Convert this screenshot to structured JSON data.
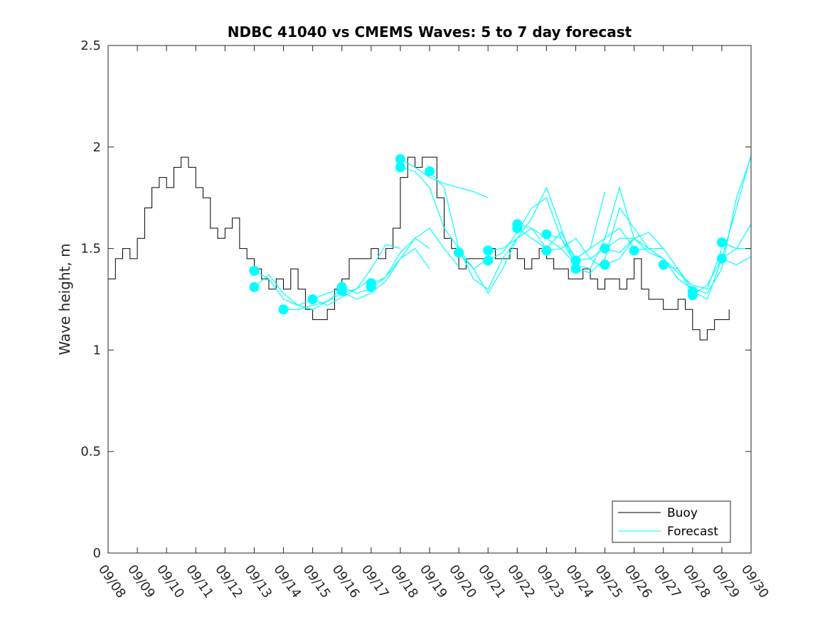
{
  "chart_data": {
    "type": "line",
    "title": "NDBC 41040 vs CMEMS Waves: 5 to 7 day forecast",
    "xlabel": "",
    "ylabel": "Wave height, m",
    "xlim": [
      0,
      22
    ],
    "ylim": [
      0,
      2.5
    ],
    "grid": false,
    "legend_position": "bottom-right",
    "x_tick_labels": [
      "09/08",
      "09/09",
      "09/10",
      "09/11",
      "09/12",
      "09/13",
      "09/14",
      "09/15",
      "09/16",
      "09/17",
      "09/18",
      "09/19",
      "09/20",
      "09/21",
      "09/22",
      "09/23",
      "09/24",
      "09/25",
      "09/26",
      "09/27",
      "09/28",
      "09/29",
      "09/30"
    ],
    "y_ticks": [
      0,
      0.5,
      1,
      1.5,
      2,
      2.5
    ],
    "y_tick_labels": [
      "0",
      "0.5",
      "1",
      "1.5",
      "2",
      "2.5"
    ],
    "colors": {
      "buoy": "#000000",
      "forecast": "#00ffff",
      "axis": "#262626"
    },
    "series": [
      {
        "name": "Buoy",
        "x": [
          0,
          0.25,
          0.5,
          0.75,
          1,
          1.25,
          1.5,
          1.75,
          2,
          2.25,
          2.5,
          2.75,
          3,
          3.25,
          3.5,
          3.75,
          4,
          4.25,
          4.5,
          4.75,
          5,
          5.25,
          5.5,
          5.75,
          6,
          6.25,
          6.5,
          6.75,
          7,
          7.25,
          7.5,
          7.75,
          8,
          8.25,
          8.5,
          8.75,
          9,
          9.25,
          9.5,
          9.75,
          10,
          10.25,
          10.5,
          10.75,
          11,
          11.25,
          11.5,
          11.75,
          12,
          12.25,
          12.5,
          12.75,
          13,
          13.25,
          13.5,
          13.75,
          14,
          14.25,
          14.5,
          14.75,
          15,
          15.25,
          15.5,
          15.75,
          16,
          16.25,
          16.5,
          16.75,
          17,
          17.25,
          17.5,
          17.75,
          18,
          18.25,
          18.5,
          18.75,
          19,
          19.25,
          19.5,
          19.75,
          20,
          20.25,
          20.5,
          20.75,
          21,
          21.25
        ],
        "values": [
          1.35,
          1.45,
          1.5,
          1.45,
          1.55,
          1.7,
          1.8,
          1.85,
          1.8,
          1.9,
          1.95,
          1.9,
          1.8,
          1.75,
          1.6,
          1.55,
          1.6,
          1.65,
          1.5,
          1.45,
          1.4,
          1.35,
          1.3,
          1.35,
          1.3,
          1.4,
          1.3,
          1.2,
          1.15,
          1.15,
          1.2,
          1.3,
          1.35,
          1.45,
          1.45,
          1.45,
          1.5,
          1.45,
          1.5,
          1.6,
          1.85,
          1.95,
          1.9,
          1.95,
          1.95,
          1.75,
          1.55,
          1.5,
          1.4,
          1.45,
          1.45,
          1.45,
          1.5,
          1.45,
          1.45,
          1.5,
          1.45,
          1.4,
          1.45,
          1.5,
          1.45,
          1.4,
          1.4,
          1.35,
          1.35,
          1.4,
          1.35,
          1.3,
          1.35,
          1.35,
          1.3,
          1.35,
          1.45,
          1.3,
          1.25,
          1.25,
          1.2,
          1.2,
          1.25,
          1.2,
          1.1,
          1.05,
          1.1,
          1.15,
          1.15,
          1.2
        ]
      },
      {
        "name": "Forecast",
        "runs": [
          {
            "x": [
              5,
              5.5,
              6,
              6.5,
              7,
              7.5,
              8
            ],
            "values": [
              1.39,
              1.35,
              1.25,
              1.22,
              1.25,
              1.28,
              1.3
            ]
          },
          {
            "x": [
              5,
              5.5,
              6,
              6.5,
              7,
              7.5,
              8
            ],
            "values": [
              1.31,
              1.37,
              1.28,
              1.22,
              1.2,
              1.24,
              1.3
            ]
          },
          {
            "x": [
              6,
              6.5,
              7,
              7.5,
              8,
              8.5,
              9
            ],
            "values": [
              1.2,
              1.2,
              1.22,
              1.24,
              1.28,
              1.3,
              1.35
            ]
          },
          {
            "x": [
              7,
              7.5,
              8,
              8.5,
              9,
              9.5,
              10
            ],
            "values": [
              1.25,
              1.22,
              1.26,
              1.3,
              1.4,
              1.52,
              1.5
            ]
          },
          {
            "x": [
              8,
              8.5,
              9,
              9.5,
              10,
              10.5,
              11
            ],
            "values": [
              1.31,
              1.28,
              1.3,
              1.36,
              1.48,
              1.55,
              1.5
            ]
          },
          {
            "x": [
              8,
              8.5,
              9,
              9.5,
              10,
              10.5,
              11
            ],
            "values": [
              1.29,
              1.25,
              1.28,
              1.34,
              1.45,
              1.5,
              1.4
            ]
          },
          {
            "x": [
              9,
              9.5,
              10,
              10.5,
              11,
              11.5,
              12
            ],
            "values": [
              1.32,
              1.36,
              1.45,
              1.55,
              1.6,
              1.5,
              1.41
            ]
          },
          {
            "x": [
              10,
              10.5,
              11,
              11.5,
              12,
              12.5,
              13
            ],
            "values": [
              1.94,
              1.9,
              1.85,
              1.82,
              1.8,
              1.78,
              1.75
            ]
          },
          {
            "x": [
              10,
              10.5,
              11,
              11.5,
              12,
              12.5,
              13
            ],
            "values": [
              1.9,
              1.88,
              1.8,
              1.6,
              1.5,
              1.4,
              1.45
            ]
          },
          {
            "x": [
              11,
              11.5,
              12,
              12.5,
              13,
              13.5,
              14
            ],
            "values": [
              1.88,
              1.8,
              1.5,
              1.35,
              1.3,
              1.45,
              1.55
            ]
          },
          {
            "x": [
              12,
              12.5,
              13,
              13.5,
              14,
              14.5,
              15
            ],
            "values": [
              1.48,
              1.4,
              1.28,
              1.4,
              1.55,
              1.6,
              1.5
            ]
          },
          {
            "x": [
              13,
              13.5,
              14,
              14.5,
              15,
              15.5,
              16
            ],
            "values": [
              1.49,
              1.5,
              1.55,
              1.65,
              1.8,
              1.6,
              1.4
            ]
          },
          {
            "x": [
              13,
              13.5,
              14,
              14.5,
              15,
              15.5,
              16
            ],
            "values": [
              1.44,
              1.48,
              1.58,
              1.7,
              1.75,
              1.55,
              1.42
            ]
          },
          {
            "x": [
              14,
              14.5,
              15,
              15.5,
              16,
              16.5,
              17
            ],
            "values": [
              1.62,
              1.6,
              1.55,
              1.5,
              1.55,
              1.45,
              1.4
            ]
          },
          {
            "x": [
              14,
              14.5,
              15,
              15.5,
              16,
              16.5,
              17
            ],
            "values": [
              1.6,
              1.55,
              1.5,
              1.58,
              1.45,
              1.5,
              1.78
            ]
          },
          {
            "x": [
              15,
              15.5,
              16,
              16.5,
              17,
              17.5,
              18
            ],
            "values": [
              1.57,
              1.55,
              1.45,
              1.5,
              1.55,
              1.6,
              1.5
            ]
          },
          {
            "x": [
              15,
              15.5,
              16,
              16.5,
              17,
              17.5,
              18
            ],
            "values": [
              1.49,
              1.5,
              1.42,
              1.4,
              1.55,
              1.8,
              1.55
            ]
          },
          {
            "x": [
              16,
              16.5,
              17,
              17.5,
              18,
              18.5,
              19
            ],
            "values": [
              1.44,
              1.45,
              1.5,
              1.55,
              1.55,
              1.48,
              1.45
            ]
          },
          {
            "x": [
              16,
              16.5,
              17,
              17.5,
              18,
              18.5,
              19
            ],
            "values": [
              1.4,
              1.38,
              1.45,
              1.7,
              1.6,
              1.5,
              1.5
            ]
          },
          {
            "x": [
              17,
              17.5,
              18,
              18.5,
              19,
              19.5,
              20
            ],
            "values": [
              1.5,
              1.48,
              1.55,
              1.5,
              1.45,
              1.35,
              1.3
            ]
          },
          {
            "x": [
              17,
              17.5,
              18,
              18.5,
              19,
              19.5,
              20
            ],
            "values": [
              1.42,
              1.45,
              1.55,
              1.58,
              1.5,
              1.4,
              1.28
            ]
          },
          {
            "x": [
              18,
              18.5,
              19,
              19.5,
              20,
              20.5,
              21
            ],
            "values": [
              1.49,
              1.5,
              1.45,
              1.38,
              1.32,
              1.3,
              1.5
            ]
          },
          {
            "x": [
              19,
              19.5,
              20,
              20.5,
              21,
              21.5,
              22
            ],
            "values": [
              1.42,
              1.4,
              1.3,
              1.28,
              1.4,
              1.75,
              1.95
            ]
          },
          {
            "x": [
              20,
              20.5,
              21,
              21.5,
              22
            ],
            "values": [
              1.27,
              1.32,
              1.45,
              1.7,
              1.96
            ]
          },
          {
            "x": [
              20,
              20.5,
              21,
              21.5,
              22
            ],
            "values": [
              1.29,
              1.25,
              1.45,
              1.5,
              1.62
            ]
          },
          {
            "x": [
              21,
              21.5,
              22
            ],
            "values": [
              1.53,
              1.5,
              1.5
            ]
          },
          {
            "x": [
              21,
              21.5,
              22
            ],
            "values": [
              1.45,
              1.42,
              1.46
            ]
          }
        ],
        "markers": {
          "x": [
            5,
            5,
            6,
            7,
            8,
            8,
            9,
            9,
            10,
            10,
            11,
            12,
            13,
            13,
            14,
            14,
            15,
            15,
            16,
            16,
            17,
            17,
            18,
            19,
            20,
            20,
            21,
            21
          ],
          "values": [
            1.39,
            1.31,
            1.2,
            1.25,
            1.31,
            1.29,
            1.33,
            1.31,
            1.94,
            1.9,
            1.88,
            1.48,
            1.49,
            1.44,
            1.62,
            1.6,
            1.57,
            1.49,
            1.44,
            1.4,
            1.5,
            1.42,
            1.49,
            1.42,
            1.29,
            1.27,
            1.53,
            1.45
          ]
        }
      }
    ],
    "legend": [
      {
        "label": "Buoy",
        "color": "#000000"
      },
      {
        "label": "Forecast",
        "color": "#00ffff"
      }
    ]
  }
}
